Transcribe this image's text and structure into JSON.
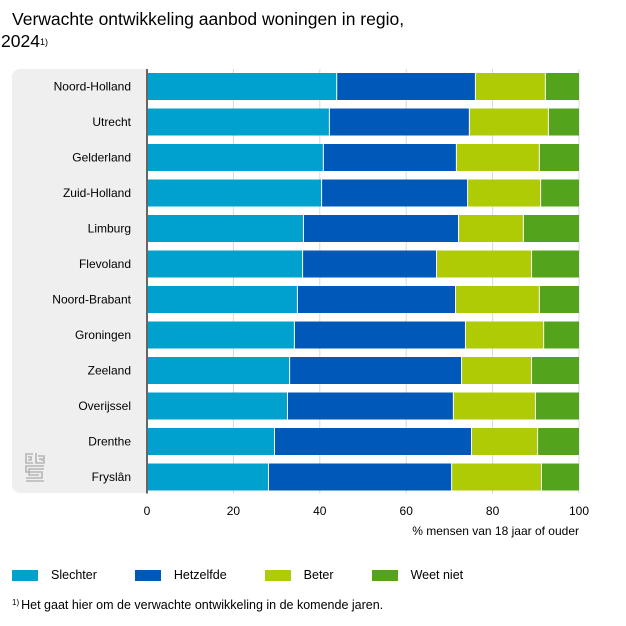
{
  "title": {
    "line1": "Verwachte ontwikkeling aanbod woningen in regio,",
    "line2": "2024",
    "footnote_marker": "1)"
  },
  "logo": {
    "icon": "cbs-logo-icon"
  },
  "colors": {
    "Slechter": "#00a1cd",
    "Hetzelfde": "#0058b8",
    "Beter": "#afcb05",
    "Weet niet": "#53a31d",
    "panel": "#efefef",
    "gridline": "#d9d9d9",
    "axis": "#666666"
  },
  "chart_data": {
    "type": "bar",
    "orientation": "horizontal",
    "stacked": true,
    "title": "Verwachte ontwikkeling aanbod woningen in regio, 2024",
    "xlabel": "% mensen van 18 jaar of ouder",
    "ylabel": "",
    "xlim": [
      0,
      100
    ],
    "xticks": [
      0,
      20,
      40,
      60,
      80,
      100
    ],
    "grid": true,
    "legend_position": "bottom",
    "categories": [
      "Noord-Holland",
      "Utrecht",
      "Gelderland",
      "Zuid-Holland",
      "Limburg",
      "Flevoland",
      "Noord-Brabant",
      "Groningen",
      "Zeeland",
      "Overijssel",
      "Drenthe",
      "Fryslân"
    ],
    "series": [
      {
        "name": "Slechter",
        "values": [
          43.8,
          42.1,
          40.7,
          40.3,
          36.1,
          35.9,
          34.7,
          34.0,
          32.9,
          32.4,
          29.4,
          28.0
        ]
      },
      {
        "name": "Hetzelfde",
        "values": [
          32.1,
          32.4,
          30.8,
          33.8,
          35.9,
          31.0,
          36.6,
          39.6,
          39.8,
          38.4,
          45.6,
          42.4
        ]
      },
      {
        "name": "Beter",
        "values": [
          16.2,
          18.3,
          19.2,
          16.9,
          15.0,
          22.0,
          19.4,
          18.1,
          16.2,
          19.0,
          15.3,
          20.8
        ]
      },
      {
        "name": "Weet niet",
        "values": [
          7.9,
          7.2,
          9.3,
          9.0,
          13.0,
          11.1,
          9.3,
          8.3,
          11.1,
          10.2,
          9.7,
          8.8
        ]
      }
    ]
  },
  "legend": [
    {
      "label": "Slechter",
      "color": "#00a1cd"
    },
    {
      "label": "Hetzelfde",
      "color": "#0058b8"
    },
    {
      "label": "Beter",
      "color": "#afcb05"
    },
    {
      "label": "Weet niet",
      "color": "#53a31d"
    }
  ],
  "footnote": {
    "marker": "1)",
    "text": "Het gaat hier om de verwachte ontwikkeling in de komende jaren."
  }
}
